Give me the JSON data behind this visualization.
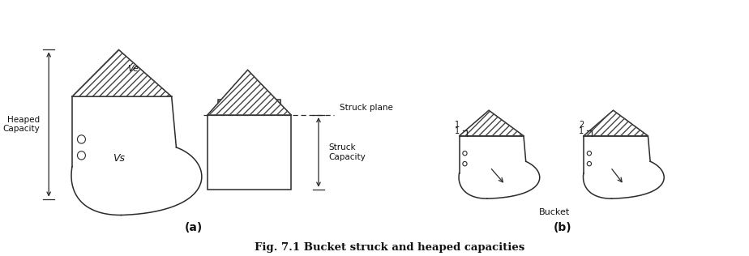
{
  "title": "Fig. 7.1 Bucket struck and heaped capacities",
  "label_a": "(a)",
  "label_b": "(b)",
  "label_ve": "Ve",
  "label_vs": "Vs",
  "label_heaped": "Heaped\nCapacity",
  "label_struck_plane": "Struck plane",
  "label_struck_capacity": "Struck\nCapacity",
  "label_bucket": "Bucket",
  "bg_color": "#ffffff",
  "line_color": "#2a2a2a",
  "hatch_color": "#444444",
  "text_color": "#111111",
  "figsize": [
    9.24,
    3.16
  ],
  "dpi": 100
}
